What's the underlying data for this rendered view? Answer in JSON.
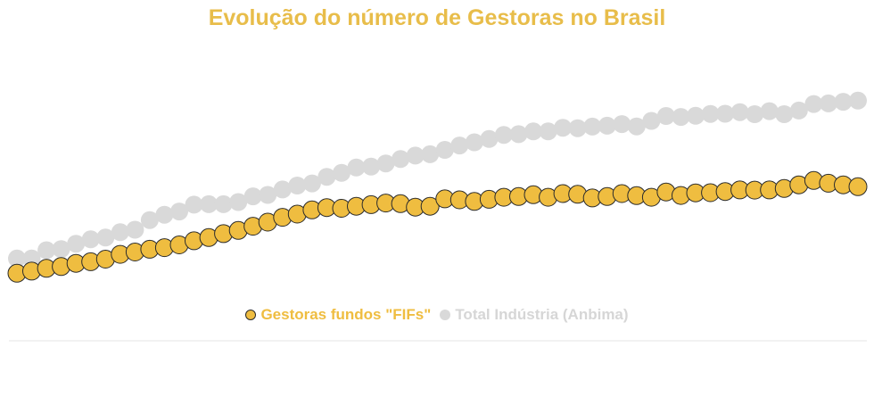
{
  "colors": {
    "title": "#E8BD4A",
    "gold": "#EFBD40",
    "gold_stroke": "#2B2B2B",
    "gray": "#D9D9D9",
    "legend_gray_text": "#D6D6D6",
    "axis": "#E6E6E6"
  },
  "chart_data": {
    "type": "scatter",
    "title": "Evolução do número de Gestoras no Brasil",
    "xlabel": "",
    "ylabel": "",
    "ylim": [
      0,
      100
    ],
    "grid": false,
    "legend_position": "bottom-center",
    "series": [
      {
        "name": "Gestoras fundos \"FIFs\"",
        "values": [
          9.2,
          10.1,
          11.3,
          12.1,
          13.5,
          14.2,
          15.3,
          17.4,
          18.4,
          19.6,
          20.3,
          21.5,
          23.3,
          24.7,
          26.4,
          27.8,
          29.6,
          31.4,
          33.5,
          34.9,
          36.7,
          37.7,
          37.4,
          38.3,
          39.0,
          39.7,
          39.4,
          37.9,
          38.3,
          41.5,
          41.1,
          40.4,
          41.3,
          42.2,
          42.5,
          43.3,
          42.2,
          43.8,
          43.5,
          41.9,
          42.5,
          43.8,
          42.9,
          42.2,
          44.5,
          43.0,
          44.1,
          44.2,
          44.7,
          45.4,
          45.3,
          45.4,
          46.0,
          47.6,
          49.5,
          48.3,
          47.6,
          46.8
        ]
      },
      {
        "name": "Total Indústria (Anbima)",
        "values": [
          15.6,
          15.6,
          19.2,
          19.7,
          22.0,
          23.9,
          24.7,
          27.0,
          28.1,
          32.3,
          34.6,
          36.0,
          39.0,
          39.2,
          39.2,
          40.1,
          42.6,
          43.2,
          45.6,
          47.3,
          48.2,
          51.1,
          52.8,
          55.1,
          55.5,
          56.9,
          58.8,
          60.3,
          60.9,
          62.8,
          64.7,
          66.1,
          67.5,
          69.3,
          69.6,
          70.8,
          70.8,
          72.4,
          72.2,
          72.9,
          73.3,
          74.0,
          73.0,
          75.4,
          77.5,
          77.1,
          77.6,
          78.4,
          78.5,
          79.2,
          78.3,
          79.6,
          78.3,
          79.9,
          82.7,
          83.0,
          83.7,
          84.2
        ]
      }
    ]
  }
}
